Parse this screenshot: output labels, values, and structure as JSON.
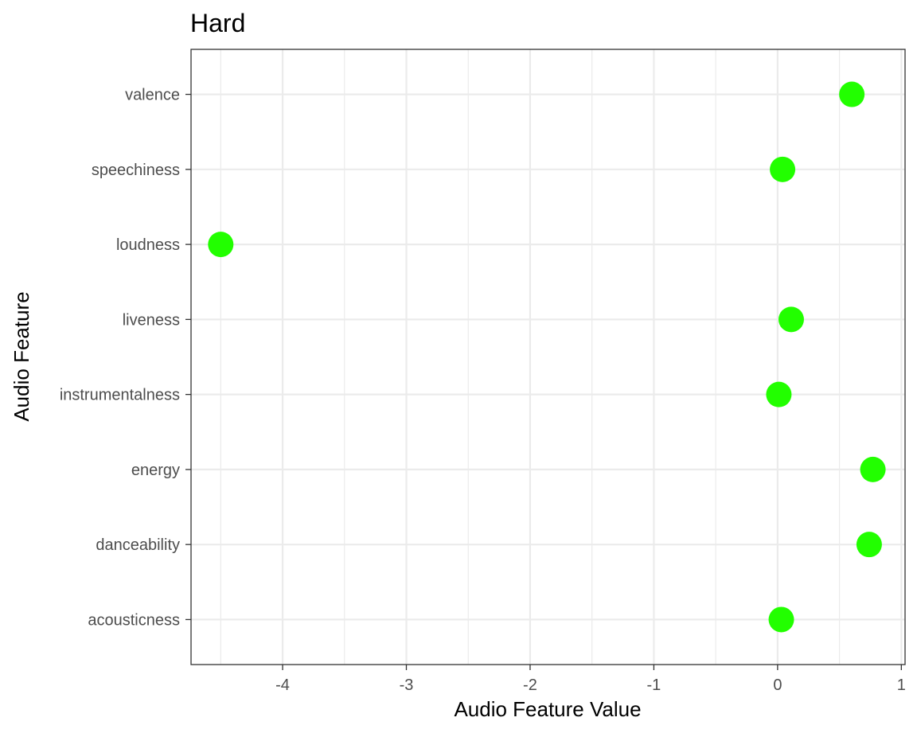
{
  "chart_data": {
    "type": "scatter",
    "title": "Hard",
    "xlabel": "Audio Feature Value",
    "ylabel": "Audio Feature",
    "xlim": [
      -4.74,
      1.03
    ],
    "x_ticks": [
      -4,
      -3,
      -2,
      -1,
      0,
      1
    ],
    "x_tick_labels": [
      "-4",
      "-3",
      "-2",
      "-1",
      "0",
      "1"
    ],
    "categories": [
      "acousticness",
      "danceability",
      "energy",
      "instrumentalness",
      "liveness",
      "loudness",
      "speechiness",
      "valence"
    ],
    "series": [
      {
        "values": [
          0.03,
          0.74,
          0.77,
          0.01,
          0.11,
          -4.5,
          0.04,
          0.6
        ],
        "color": "#22ff00"
      }
    ],
    "grid": true,
    "legend": "none"
  }
}
